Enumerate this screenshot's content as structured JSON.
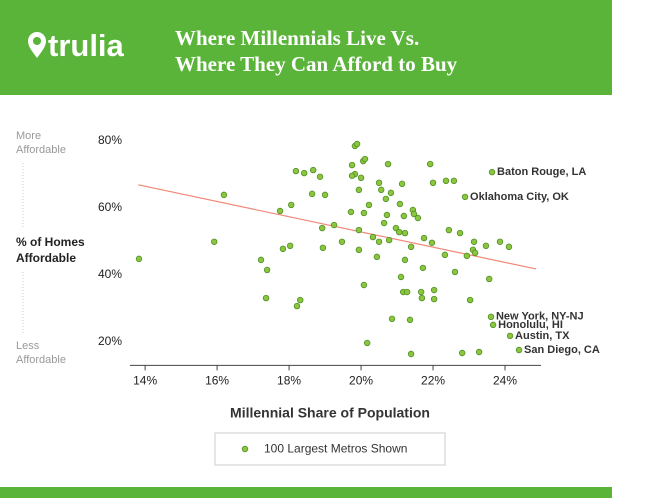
{
  "logo": "trulia",
  "chart_data": {
    "type": "scatter",
    "title": [
      "Where Millennials Live Vs.",
      "Where They Can Afford to Buy"
    ],
    "xlabel": "Millennial Share of Population",
    "ylabel": [
      "% of Homes",
      "Affordable"
    ],
    "y_top_label": [
      "More",
      "Affordable"
    ],
    "y_bottom_label": [
      "Less",
      "Affordable"
    ],
    "xlim": [
      13.58,
      25
    ],
    "ylim": [
      13,
      81
    ],
    "xticks": [
      {
        "value": 14,
        "label": "14%"
      },
      {
        "value": 16,
        "label": "16%"
      },
      {
        "value": 18,
        "label": "18%"
      },
      {
        "value": 20,
        "label": "20%"
      },
      {
        "value": 22,
        "label": "22%"
      },
      {
        "value": 24,
        "label": "24%"
      }
    ],
    "yticks": [
      {
        "value": 20,
        "label": "20%"
      },
      {
        "value": 40,
        "label": "40%"
      },
      {
        "value": 60,
        "label": "60%"
      },
      {
        "value": 80,
        "label": "80%"
      }
    ],
    "trendline": {
      "color": "#f08878",
      "x": [
        13.81,
        24.86
      ],
      "y": [
        66.9,
        41.8
      ]
    },
    "series": [
      {
        "name": "100 Largest Metros Shown",
        "color": "#8cc63f",
        "edge_color": "#4f8f25",
        "x": [
          13.83,
          15.92,
          16.19,
          17.22,
          17.39,
          17.36,
          17.75,
          17.83,
          18.03,
          18.06,
          18.22,
          18.31,
          18.19,
          18.42,
          18.67,
          18.64,
          18.86,
          19.0,
          18.92,
          18.94,
          19.25,
          19.47,
          19.75,
          19.72,
          19.83,
          19.89,
          19.83,
          19.75,
          20.0,
          20.06,
          20.11,
          19.94,
          19.94,
          19.94,
          20.08,
          20.08,
          20.17,
          20.22,
          20.33,
          20.44,
          20.5,
          20.5,
          20.56,
          20.64,
          20.72,
          20.75,
          20.69,
          20.83,
          20.78,
          20.86,
          20.97,
          21.06,
          21.11,
          21.14,
          21.17,
          21.22,
          21.28,
          21.19,
          21.08,
          21.22,
          21.39,
          21.36,
          21.44,
          21.47,
          21.39,
          21.58,
          21.67,
          21.69,
          21.72,
          21.75,
          21.92,
          21.97,
          22.03,
          22.03,
          22.0,
          22.36,
          22.33,
          22.44,
          22.58,
          22.61,
          22.75,
          22.81,
          22.89,
          22.94,
          23.03,
          23.11,
          23.14,
          23.17,
          23.28,
          23.47,
          23.56,
          23.61,
          23.64,
          23.67,
          23.86,
          24.11,
          24.14,
          24.39
        ],
        "y": [
          44.8,
          49.9,
          63.9,
          44.5,
          41.5,
          33.1,
          59.1,
          47.8,
          48.7,
          60.9,
          30.7,
          32.5,
          71.0,
          70.4,
          71.3,
          64.2,
          69.3,
          63.9,
          54.0,
          48.1,
          54.9,
          49.9,
          72.8,
          58.8,
          78.5,
          79.1,
          70.1,
          69.6,
          69.0,
          74.0,
          74.6,
          65.4,
          53.4,
          47.5,
          58.5,
          37.0,
          19.7,
          60.9,
          51.3,
          45.4,
          49.9,
          67.5,
          65.4,
          55.5,
          57.9,
          73.1,
          62.7,
          64.5,
          50.4,
          26.9,
          54.0,
          52.8,
          39.4,
          67.2,
          34.9,
          52.5,
          34.9,
          57.6,
          61.2,
          44.5,
          48.4,
          26.6,
          59.4,
          58.2,
          16.4,
          57.0,
          34.9,
          33.1,
          42.1,
          51.0,
          73.1,
          49.6,
          35.5,
          32.8,
          67.5,
          68.1,
          46.0,
          53.4,
          68.1,
          40.9,
          52.5,
          16.7,
          63.3,
          45.7,
          32.5,
          47.5,
          49.9,
          46.6,
          17.0,
          48.7,
          38.8,
          27.5,
          70.7,
          25.1,
          49.9,
          48.4,
          21.8,
          17.6
        ],
        "labels": [
          null,
          null,
          null,
          null,
          null,
          null,
          null,
          null,
          null,
          null,
          null,
          null,
          null,
          null,
          null,
          null,
          null,
          null,
          null,
          null,
          null,
          null,
          null,
          null,
          null,
          null,
          null,
          null,
          null,
          null,
          null,
          null,
          null,
          null,
          null,
          null,
          null,
          null,
          null,
          null,
          null,
          null,
          null,
          null,
          null,
          null,
          null,
          null,
          null,
          null,
          null,
          null,
          null,
          null,
          null,
          null,
          null,
          null,
          null,
          null,
          null,
          null,
          null,
          null,
          null,
          null,
          null,
          null,
          null,
          null,
          null,
          null,
          null,
          null,
          null,
          null,
          null,
          null,
          null,
          null,
          null,
          null,
          "Oklahoma City, OK",
          null,
          null,
          null,
          null,
          null,
          null,
          null,
          null,
          "New York, NY-NJ",
          "Baton Rouge, LA",
          "Honolulu, HI",
          null,
          null,
          "Austin, TX",
          "San Diego, CA"
        ]
      }
    ]
  }
}
